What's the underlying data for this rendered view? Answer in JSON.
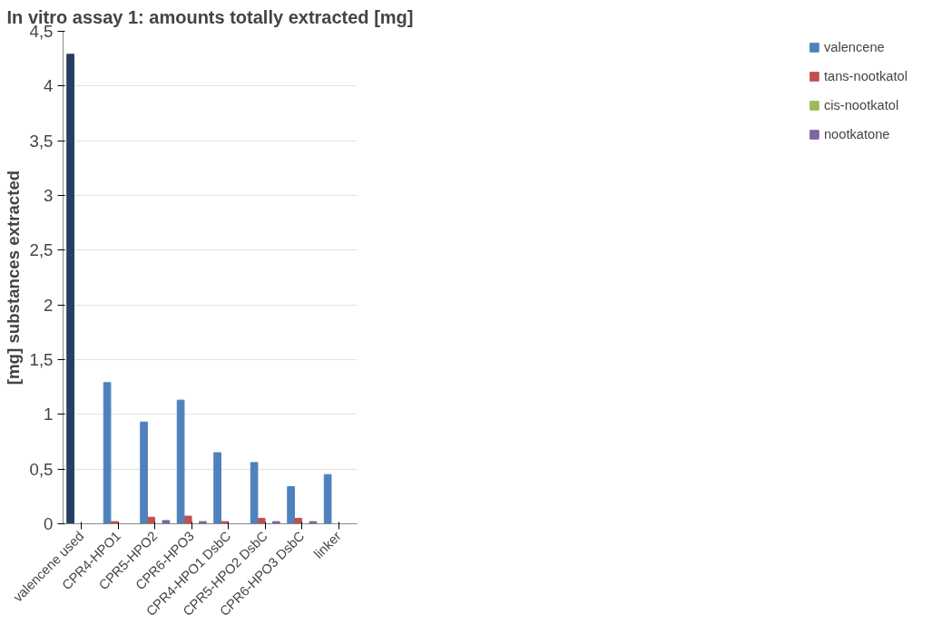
{
  "chart_data": {
    "type": "bar",
    "title": "In vitro assay 1: amounts totally extracted [mg]",
    "ylabel": "[mg] substances extracted",
    "categories": [
      "valencene used",
      "CPR4-HPO1",
      "CPR5-HPO2",
      "CPR6-HPO3",
      "CPR4-HPO1 DsbC",
      "CPR5-HPO2 DsbC",
      "CPR6-HPO3 DsbC",
      "linker"
    ],
    "series": [
      {
        "name": "valencene",
        "color": "#4f81bd",
        "colors": [
          "#243f60",
          "#4f81bd",
          "#4f81bd",
          "#4f81bd",
          "#4f81bd",
          "#4f81bd",
          "#4f81bd",
          "#4f81bd"
        ],
        "values": [
          4.29,
          1.29,
          0.93,
          1.13,
          0.65,
          0.56,
          0.34,
          0.45
        ]
      },
      {
        "name": "tans-nootkatol",
        "color": "#c0504d",
        "values": [
          0,
          0.02,
          0.06,
          0.07,
          0.02,
          0.05,
          0.05,
          0
        ]
      },
      {
        "name": "cis-nootkatol",
        "color": "#9bbb59",
        "values": [
          0,
          0,
          0,
          0,
          0,
          0,
          0,
          0
        ]
      },
      {
        "name": "nootkatone",
        "color": "#8064a2",
        "values": [
          0,
          0,
          0.03,
          0.02,
          0,
          0.02,
          0.02,
          0
        ]
      }
    ],
    "ylim": [
      0,
      4.5
    ],
    "yticks": [
      0,
      {
        "value": 0.5,
        "label": "0,5"
      },
      1,
      {
        "value": 1.5,
        "label": "1,5"
      },
      2,
      {
        "value": 2.5,
        "label": "2,5"
      },
      3,
      {
        "value": 3.5,
        "label": "3,5"
      },
      4,
      {
        "value": 4.5,
        "label": "4,5"
      }
    ],
    "grid": "y",
    "legend": "right"
  }
}
